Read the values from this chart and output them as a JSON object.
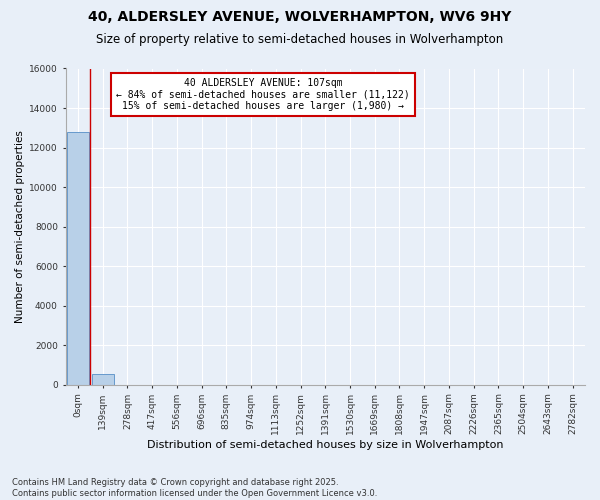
{
  "title": "40, ALDERSLEY AVENUE, WOLVERHAMPTON, WV6 9HY",
  "subtitle": "Size of property relative to semi-detached houses in Wolverhampton",
  "xlabel": "Distribution of semi-detached houses by size in Wolverhampton",
  "ylabel": "Number of semi-detached properties",
  "annotation_title": "40 ALDERSLEY AVENUE: 107sqm",
  "annotation_line2": "← 84% of semi-detached houses are smaller (11,122)",
  "annotation_line3": "15% of semi-detached houses are larger (1,980) →",
  "footer_line1": "Contains HM Land Registry data © Crown copyright and database right 2025.",
  "footer_line2": "Contains public sector information licensed under the Open Government Licence v3.0.",
  "bin_labels": [
    "0sqm",
    "139sqm",
    "278sqm",
    "417sqm",
    "556sqm",
    "696sqm",
    "835sqm",
    "974sqm",
    "1113sqm",
    "1252sqm",
    "1391sqm",
    "1530sqm",
    "1669sqm",
    "1808sqm",
    "1947sqm",
    "2087sqm",
    "2226sqm",
    "2365sqm",
    "2504sqm",
    "2643sqm",
    "2782sqm"
  ],
  "bin_values": [
    12800,
    550,
    0,
    0,
    0,
    0,
    0,
    0,
    0,
    0,
    0,
    0,
    0,
    0,
    0,
    0,
    0,
    0,
    0,
    0,
    0
  ],
  "bar_color": "#b8d0e8",
  "bar_edge_color": "#6699cc",
  "background_color": "#e8eff8",
  "plot_bg_color": "#e8eff8",
  "grid_color": "#ffffff",
  "vline_color": "#cc0000",
  "annotation_box_facecolor": "#ffffff",
  "annotation_box_edgecolor": "#cc0000",
  "ylim": [
    0,
    16000
  ],
  "yticks": [
    0,
    2000,
    4000,
    6000,
    8000,
    10000,
    12000,
    14000,
    16000
  ],
  "title_fontsize": 10,
  "subtitle_fontsize": 8.5,
  "ylabel_fontsize": 7.5,
  "xlabel_fontsize": 8,
  "tick_fontsize": 6.5,
  "annotation_fontsize": 7,
  "footer_fontsize": 6
}
